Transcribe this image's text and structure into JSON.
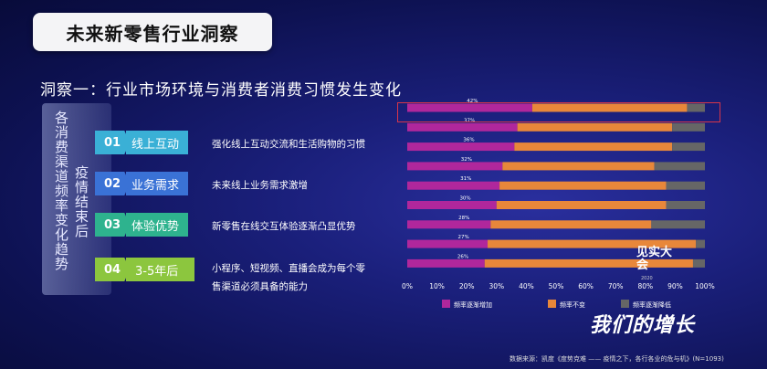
{
  "header": {
    "title": "未来新零售行业洞察"
  },
  "insight": {
    "title": "洞察一：行业市场环境与消费者消费习惯发生变化"
  },
  "side_box": {
    "col_left": "各消费渠道频率变化趋势",
    "col_right": "疫情结束后"
  },
  "items": [
    {
      "num": "01",
      "label": "线上互动",
      "desc": "强化线上互动交流和生活购物的习惯"
    },
    {
      "num": "02",
      "label": "业务需求",
      "desc": "未来线上业务需求激增"
    },
    {
      "num": "03",
      "label": "体验优势",
      "desc": "新零售在线交互体验逐渐凸显优势"
    },
    {
      "num": "04",
      "label": "3-5年后",
      "desc_line1": "小程序、短视频、直播会成为每个零",
      "desc_line2": "售渠道必须具备的能力"
    }
  ],
  "colors": {
    "item_01": "#3ab0d6",
    "item_02": "#3a72d6",
    "item_03": "#2eb38e",
    "item_04": "#8cc63e",
    "increase": "#b0279c",
    "same": "#e8873a",
    "decrease": "#666666"
  },
  "chart_data": {
    "type": "bar",
    "orientation": "horizontal",
    "stacked": true,
    "categories": [
      "",
      "",
      "",
      "",
      "",
      "",
      "",
      "",
      ""
    ],
    "series": [
      {
        "name": "频率逐渐增加",
        "values": [
          42,
          37,
          36,
          32,
          31,
          30,
          28,
          27,
          26
        ]
      },
      {
        "name": "频率不变",
        "values": [
          52,
          52,
          53,
          51,
          56,
          57,
          54,
          70,
          70
        ]
      },
      {
        "name": "频率逐渐降低",
        "values": [
          6,
          11,
          11,
          17,
          13,
          13,
          18,
          3,
          4
        ]
      }
    ],
    "data_labels": [
      "42%",
      "37%",
      "36%",
      "32%",
      "31%",
      "30%",
      "28%",
      "27%",
      "26%"
    ],
    "xlim": [
      0,
      100
    ],
    "xticks": [
      "0%",
      "10%",
      "20%",
      "30%",
      "40%",
      "50%",
      "60%",
      "70%",
      "80%",
      "90%",
      "100%"
    ],
    "legend_position": "bottom",
    "highlight_row": 0
  },
  "watermark": {
    "text": "我们的增长",
    "logo_text": "见实大会",
    "year": "2020"
  },
  "source": {
    "text": "数据来源：凯度《度势克难 —— 疫情之下，各行各业的危与机》(N=1093)"
  }
}
